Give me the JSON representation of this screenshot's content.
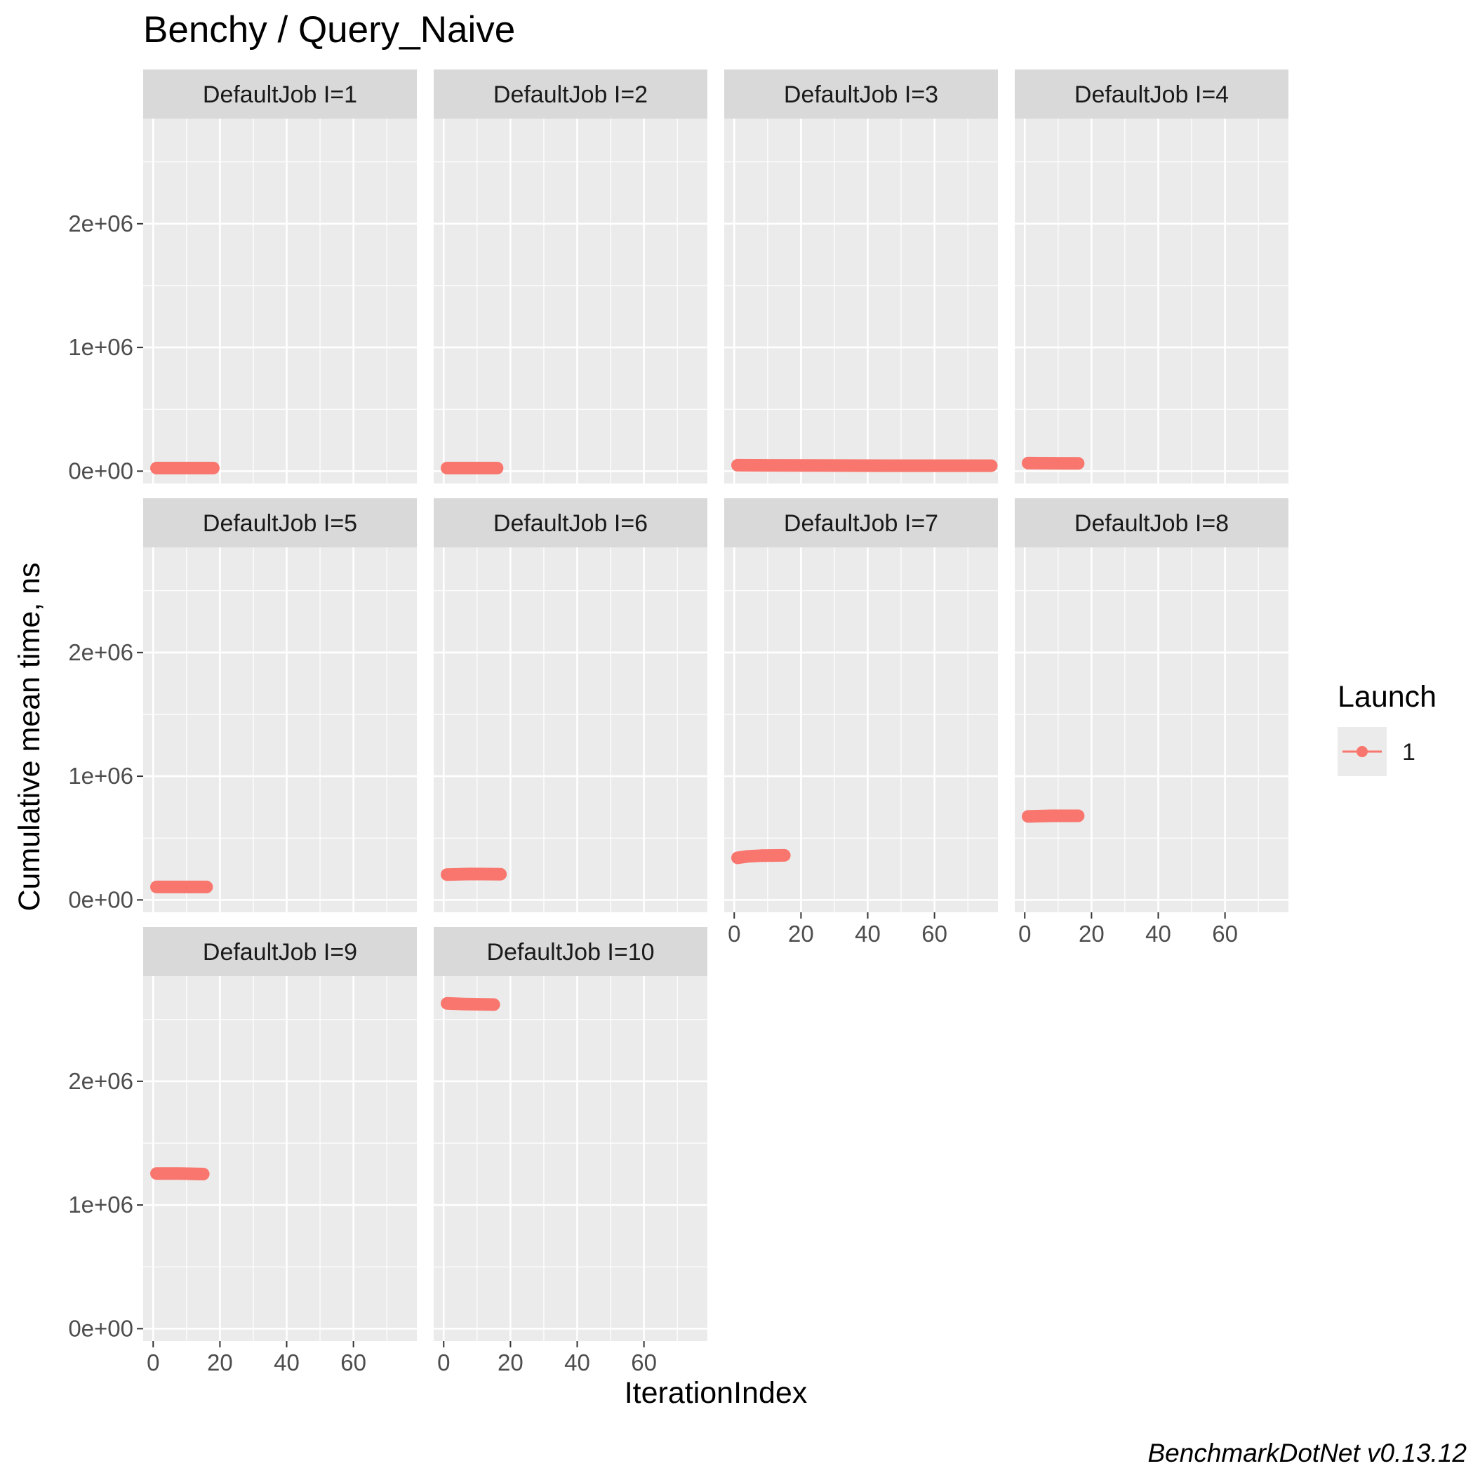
{
  "chart_data": {
    "type": "line",
    "title": "Benchy / Query_Naive",
    "xlabel": "IterationIndex",
    "ylabel": "Cumulative mean time, ns",
    "caption": "BenchmarkDotNet v0.13.12",
    "xlim": [
      -3,
      79
    ],
    "ylim": [
      -100000,
      2850000
    ],
    "x_ticks": [
      0,
      20,
      40,
      60
    ],
    "x_tick_labels": [
      "0",
      "20",
      "40",
      "60"
    ],
    "y_ticks": [
      0,
      1000000,
      2000000
    ],
    "y_tick_labels": [
      "0e+00",
      "1e+06",
      "2e+06"
    ],
    "grid": true,
    "facet_layout": {
      "columns": 4,
      "rows": 3
    },
    "legend": {
      "title": "Launch",
      "position": "right",
      "entries": [
        {
          "label": "1",
          "color": "#F8766D"
        }
      ]
    },
    "series_color": "#F8766D",
    "panels": [
      {
        "label": "DefaultJob I=1",
        "x": [
          1,
          18
        ],
        "values": [
          25000,
          25000
        ]
      },
      {
        "label": "DefaultJob I=2",
        "x": [
          1,
          16
        ],
        "values": [
          25000,
          25000
        ]
      },
      {
        "label": "DefaultJob I=3",
        "x": [
          1,
          10,
          30,
          50,
          70,
          77
        ],
        "values": [
          48000,
          47000,
          45000,
          44000,
          44000,
          44000
        ]
      },
      {
        "label": "DefaultJob I=4",
        "x": [
          1,
          8,
          16
        ],
        "values": [
          65000,
          64000,
          63000
        ]
      },
      {
        "label": "DefaultJob I=5",
        "x": [
          1,
          16
        ],
        "values": [
          105000,
          105000
        ]
      },
      {
        "label": "DefaultJob I=6",
        "x": [
          1,
          8,
          17
        ],
        "values": [
          205000,
          210000,
          208000
        ]
      },
      {
        "label": "DefaultJob I=7",
        "x": [
          1,
          4,
          8,
          15
        ],
        "values": [
          340000,
          352000,
          358000,
          360000
        ]
      },
      {
        "label": "DefaultJob I=8",
        "x": [
          1,
          8,
          16
        ],
        "values": [
          675000,
          680000,
          680000
        ]
      },
      {
        "label": "DefaultJob I=9",
        "x": [
          1,
          8,
          15
        ],
        "values": [
          1255000,
          1255000,
          1250000
        ]
      },
      {
        "label": "DefaultJob I=10",
        "x": [
          1,
          6,
          15
        ],
        "values": [
          2630000,
          2625000,
          2620000
        ]
      }
    ]
  }
}
